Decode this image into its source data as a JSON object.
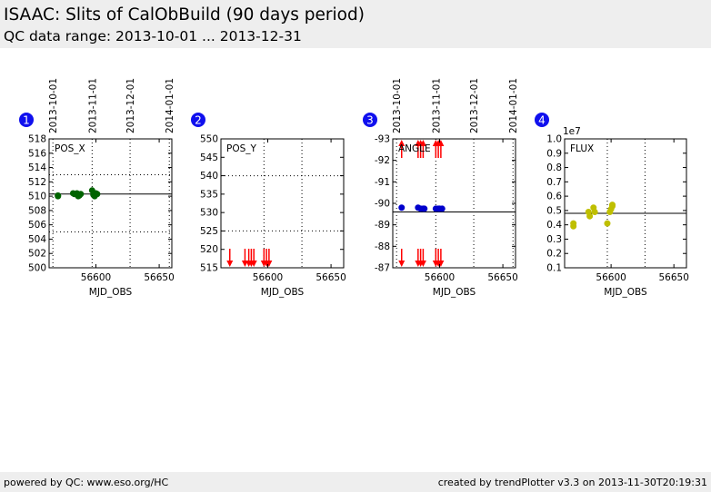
{
  "header": {
    "title": "ISAAC: Slits of CalObBuild (90 days period)",
    "subtitle": "QC data range: 2013-10-01 ... 2013-12-31"
  },
  "footer": {
    "left": "powered by QC: www.eso.org/HC",
    "right": "created by trendPlotter v3.3 on 2013-11-30T20:19:31"
  },
  "colors": {
    "badge": "#1010ee",
    "pos_x": "#006400",
    "pos_y": "#ff0000",
    "angle_points": "#0000cc",
    "angle_limits": "#ff0000",
    "flux": "#bfbf00"
  },
  "chart_data": [
    {
      "type": "scatter",
      "badge": "1",
      "label": "POS_X",
      "xlabel": "MJD_OBS",
      "xlim": [
        56563,
        56660
      ],
      "xticks": [
        56600,
        56650
      ],
      "ylim": [
        500,
        518
      ],
      "yticks": [
        500,
        502,
        504,
        506,
        508,
        510,
        512,
        514,
        516,
        518
      ],
      "inverted": false,
      "top_dates": [
        "2013-10-01",
        "2013-11-01",
        "2013-12-01",
        "2014-01-01"
      ],
      "top_date_mjd": [
        56566,
        56597,
        56627,
        56658
      ],
      "reference_line": 510.3,
      "dotted_hlines": [
        505,
        513
      ],
      "grid": true,
      "x": [
        56570,
        56570,
        56582,
        56583,
        56585,
        56586,
        56586,
        56587,
        56588,
        56597,
        56598,
        56599,
        56600,
        56601
      ],
      "y": [
        510.0,
        510.1,
        510.4,
        510.3,
        510.4,
        510.0,
        510.2,
        510.1,
        510.3,
        510.8,
        510.2,
        510.0,
        510.4,
        510.3
      ],
      "arrows_up": [],
      "arrows_down": []
    },
    {
      "type": "scatter",
      "badge": "2",
      "label": "POS_Y",
      "xlabel": "MJD_OBS",
      "xlim": [
        56563,
        56660
      ],
      "xticks": [
        56600,
        56650
      ],
      "ylim": [
        515,
        550
      ],
      "yticks": [
        515,
        520,
        525,
        530,
        535,
        540,
        545,
        550
      ],
      "inverted": false,
      "top_dates": [],
      "top_date_mjd": [],
      "reference_line": null,
      "dotted_hlines": [
        525,
        540
      ],
      "grid": true,
      "x": [],
      "y": [],
      "arrows_up": [],
      "arrows_down": [
        56570,
        56582,
        56585,
        56587,
        56589,
        56597,
        56599,
        56601
      ]
    },
    {
      "type": "scatter",
      "badge": "3",
      "label": "ANGLE",
      "xlabel": "MJD_OBS",
      "xlim": [
        56563,
        56660
      ],
      "xticks": [
        56600,
        56650
      ],
      "ylim": [
        -93,
        -87
      ],
      "yticks": [
        -93,
        -92,
        -91,
        -90,
        -89,
        -88,
        -87
      ],
      "inverted": true,
      "top_dates": [
        "2013-10-01",
        "2013-11-01",
        "2013-12-01",
        "2014-01-01"
      ],
      "top_date_mjd": [
        56566,
        56597,
        56627,
        56658
      ],
      "reference_line": -89.6,
      "dotted_hlines": [],
      "grid": true,
      "x": [
        56570,
        56583,
        56585,
        56587,
        56588,
        56597,
        56599,
        56600,
        56602
      ],
      "y": [
        -89.8,
        -89.8,
        -89.75,
        -89.75,
        -89.75,
        -89.75,
        -89.75,
        -89.75,
        -89.75
      ],
      "arrows_up": [
        56570,
        56583,
        56585,
        56587,
        56597,
        56599,
        56601
      ],
      "arrows_down": [
        56570,
        56583,
        56585,
        56587,
        56597,
        56599,
        56601
      ]
    },
    {
      "type": "scatter",
      "badge": "4",
      "label": "FLUX",
      "xlabel": "MJD_OBS",
      "xlim": [
        56563,
        56660
      ],
      "xticks": [
        56600,
        56650
      ],
      "ylim": [
        0.1,
        1.0
      ],
      "yticks": [
        0.1,
        0.2,
        0.3,
        0.4,
        0.5,
        0.6,
        0.7,
        0.8,
        0.9,
        1.0
      ],
      "ytick_labels": [
        "0.1",
        "0.2",
        "0.3",
        "0.4",
        "0.5",
        "0.6",
        "0.7",
        "0.8",
        "0.9",
        "1.0"
      ],
      "y_multiplier": "1e7",
      "inverted": false,
      "top_dates": [],
      "top_date_mjd": [],
      "reference_line": 0.48,
      "dotted_hlines": [],
      "grid": true,
      "x": [
        56570,
        56570,
        56582,
        56583,
        56586,
        56587,
        56597,
        56599,
        56600,
        56601,
        56601
      ],
      "y": [
        0.39,
        0.41,
        0.49,
        0.46,
        0.52,
        0.49,
        0.41,
        0.49,
        0.51,
        0.53,
        0.54
      ],
      "arrows_up": [],
      "arrows_down": []
    }
  ]
}
